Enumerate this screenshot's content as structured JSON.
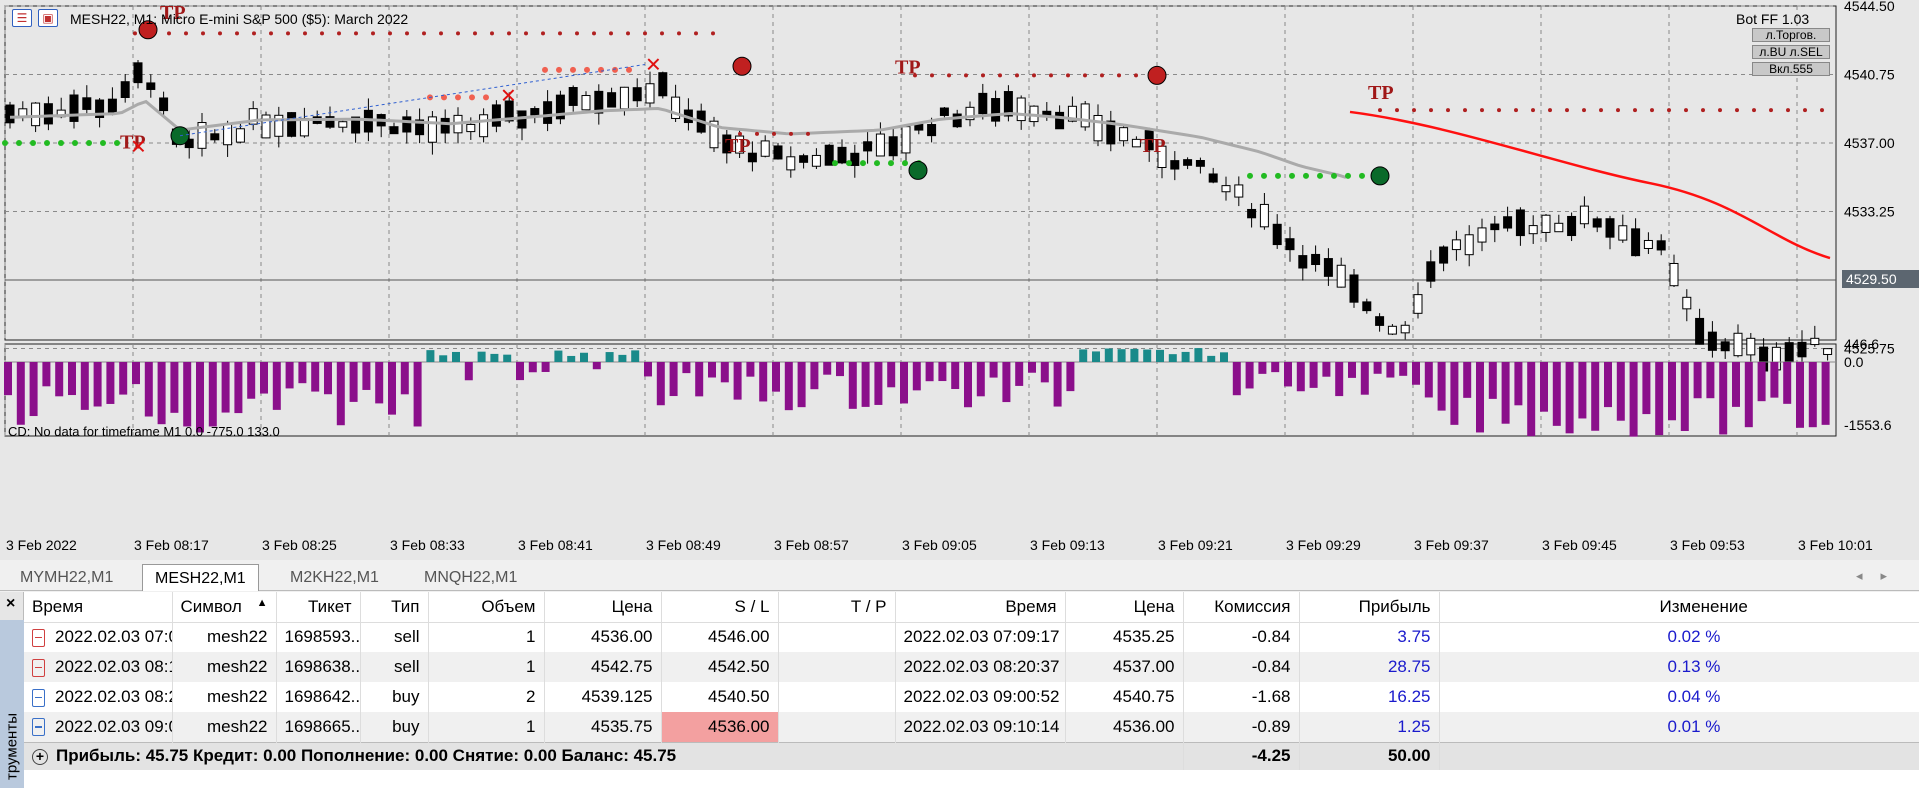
{
  "chart": {
    "title": "MESH22, M1:  Micro E-mini S&P 500 ($5): March 2022",
    "bot_label": "Bot FF 1.03",
    "bot_buttons": [
      "л.Торгов.",
      "л.BU  л.SEL",
      "Вкл.555"
    ],
    "price_axis": [
      "4544.50",
      "4540.75",
      "4537.00",
      "4533.25",
      "4529.50",
      "4525.75"
    ],
    "current_price": "4529.50",
    "tp_label": "TP",
    "indicator_label": "CD: No data for timeframe M1 0.0 -775.0 133.0",
    "indicator_axis": [
      "446.6",
      "0.0",
      "-1553.6"
    ],
    "time_axis": [
      "3 Feb 2022",
      "3 Feb 08:17",
      "3 Feb 08:25",
      "3 Feb 08:33",
      "3 Feb 08:41",
      "3 Feb 08:49",
      "3 Feb 08:57",
      "3 Feb 09:05",
      "3 Feb 09:13",
      "3 Feb 09:21",
      "3 Feb 09:29",
      "3 Feb 09:37",
      "3 Feb 09:45",
      "3 Feb 09:53",
      "3 Feb 10:01"
    ],
    "colors": {
      "bull": "#ffffff",
      "bear": "#000000",
      "ma": "#aaaaaa",
      "trend": "#ff1010",
      "tp_dots": "#b02020",
      "green_dots": "#22bb22",
      "hist_neg": "#8b0f8b",
      "hist_pos": "#1a8a8a"
    }
  },
  "tabs": [
    "MYMH22,M1",
    "MESH22,M1",
    "M2KH22,M1",
    "MNQH22,M1"
  ],
  "active_tab": 1,
  "panel": {
    "vertical_tab": "трументы",
    "close_icon": "×",
    "columns": [
      "Время",
      "Символ",
      "Тикет",
      "Тип",
      "Объем",
      "Цена",
      "S / L",
      "T / P",
      "Время",
      "Цена",
      "Комиссия",
      "Прибыль",
      "Изменение"
    ],
    "sort_arrow": "▲",
    "rows": [
      {
        "time_open": "2022.02.03 07:0...",
        "symbol": "mesh22",
        "ticket": "1698593...",
        "type": "sell",
        "volume": "1",
        "price": "4536.00",
        "sl": "4546.00",
        "tp": "",
        "time_close": "2022.02.03 07:09:17",
        "price_close": "4535.25",
        "commission": "-0.84",
        "profit": "3.75",
        "change": "0.02 %"
      },
      {
        "time_open": "2022.02.03 08:1...",
        "symbol": "mesh22",
        "ticket": "1698638...",
        "type": "sell",
        "volume": "1",
        "price": "4542.75",
        "sl": "4542.50",
        "tp": "",
        "time_close": "2022.02.03 08:20:37",
        "price_close": "4537.00",
        "commission": "-0.84",
        "profit": "28.75",
        "change": "0.13 %"
      },
      {
        "time_open": "2022.02.03 08:2...",
        "symbol": "mesh22",
        "ticket": "1698642...",
        "type": "buy",
        "volume": "2",
        "price": "4539.125",
        "sl": "4540.50",
        "tp": "",
        "time_close": "2022.02.03 09:00:52",
        "price_close": "4540.75",
        "commission": "-1.68",
        "profit": "16.25",
        "change": "0.04 %"
      },
      {
        "time_open": "2022.02.03 09:0...",
        "symbol": "mesh22",
        "ticket": "1698665...",
        "type": "buy",
        "volume": "1",
        "price": "4535.75",
        "sl": "4536.00",
        "tp": "",
        "time_close": "2022.02.03 09:10:14",
        "price_close": "4536.00",
        "commission": "-0.89",
        "profit": "1.25",
        "change": "0.01 %"
      }
    ],
    "summary": {
      "text": "Прибыль: 45.75  Кредит: 0.00  Пополнение: 0.00  Снятие: 0.00  Баланс: 45.75",
      "commission": "-4.25",
      "profit": "50.00"
    }
  }
}
